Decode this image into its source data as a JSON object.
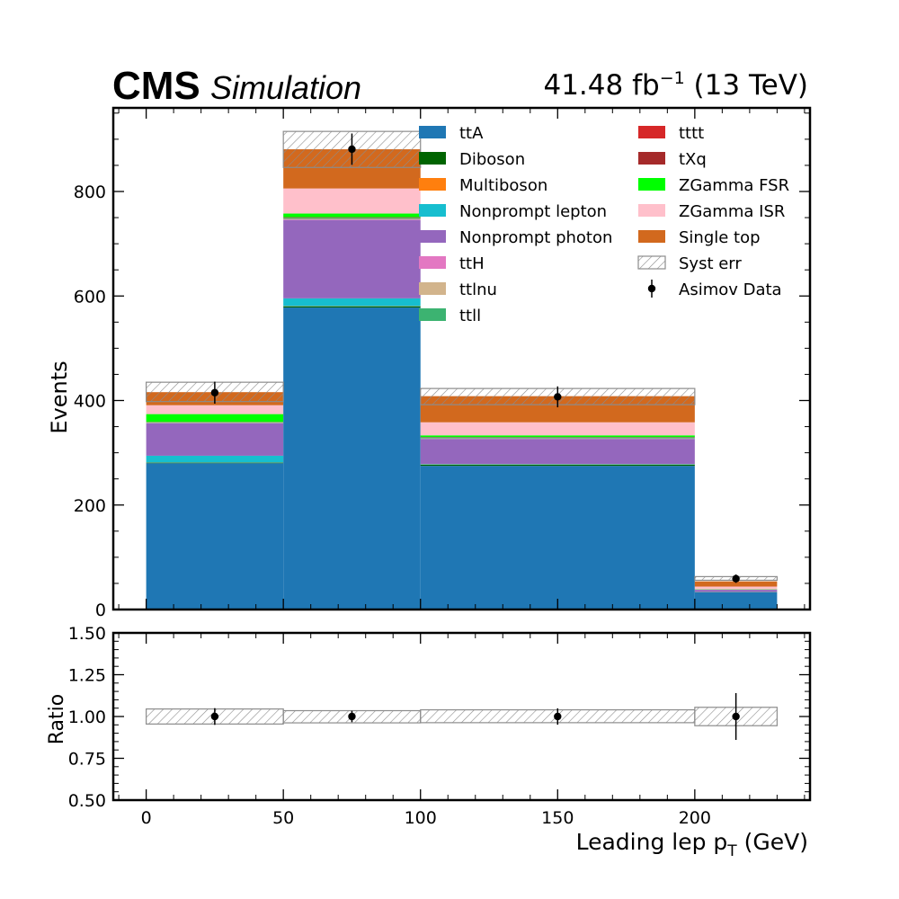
{
  "header": {
    "experiment": "CMS",
    "label": "Simulation",
    "lumi_value": "41.48 fb",
    "lumi_exp": "−1",
    "energy": " (13 TeV)"
  },
  "chart_data": [
    {
      "type": "bar",
      "stacked": true,
      "bins": [
        [
          0,
          50
        ],
        [
          50,
          100
        ],
        [
          100,
          200
        ],
        [
          200,
          230
        ]
      ],
      "ylabel": "Events",
      "ylim": [
        0,
        960
      ],
      "yticks": [
        "0",
        "200",
        "400",
        "600",
        "800"
      ],
      "legend_position": "top-right",
      "series": [
        {
          "name": "ttA",
          "color": "#1f77b4",
          "values": [
            280,
            578,
            275,
            33
          ]
        },
        {
          "name": "Diboson",
          "color": "#006400",
          "values": [
            1,
            2,
            2,
            0.3
          ]
        },
        {
          "name": "Multiboson",
          "color": "#ff7f0e",
          "values": [
            0.3,
            0.5,
            0.5,
            0.1
          ]
        },
        {
          "name": "Nonprompt lepton",
          "color": "#17becf",
          "values": [
            13,
            15,
            1,
            0.3
          ]
        },
        {
          "name": "Nonprompt photon",
          "color": "#9467bd",
          "values": [
            62,
            150,
            48,
            4
          ]
        },
        {
          "name": "ttH",
          "color": "#e377c2",
          "values": [
            0.5,
            1,
            0.5,
            0.1
          ]
        },
        {
          "name": "ttlnu",
          "color": "#d2b48c",
          "values": [
            0.5,
            1,
            0.5,
            0.1
          ]
        },
        {
          "name": "ttll",
          "color": "#3cb371",
          "values": [
            1,
            2,
            2,
            0.3
          ]
        },
        {
          "name": "tttt",
          "color": "#d62728",
          "values": [
            0.2,
            0.3,
            0.3,
            0.1
          ]
        },
        {
          "name": "tXq",
          "color": "#a52a2a",
          "values": [
            0.5,
            1,
            0.5,
            0.1
          ]
        },
        {
          "name": "ZGamma FSR",
          "color": "#00ff00",
          "values": [
            15,
            7,
            3,
            0.5
          ]
        },
        {
          "name": "ZGamma ISR",
          "color": "#ffc0cb",
          "values": [
            17,
            48,
            25,
            5
          ]
        },
        {
          "name": "Single top",
          "color": "#d2691e",
          "values": [
            25,
            75,
            50,
            10
          ]
        }
      ],
      "syst_err": {
        "name": "Syst err",
        "up": [
          435,
          915,
          423,
          63
        ],
        "down": [
          398,
          846,
          392,
          56
        ]
      },
      "data": {
        "name": "Asimov Data",
        "x": [
          25,
          75,
          150,
          215
        ],
        "y": [
          415,
          881,
          407,
          59
        ],
        "yerr": [
          21,
          30,
          20,
          8
        ]
      }
    },
    {
      "type": "scatter",
      "ylabel": "Ratio",
      "xlabel": "Leading lep p",
      "xlabel_sub": "T",
      "xlabel_unit": " (GeV)",
      "xlim": [
        -12,
        242
      ],
      "ylim": [
        0.5,
        1.5
      ],
      "xticks": [
        "0",
        "50",
        "100",
        "150",
        "200"
      ],
      "yticks": [
        "0.50",
        "0.75",
        "1.00",
        "1.25",
        "1.50"
      ],
      "ratio_band": {
        "up": [
          1.045,
          1.035,
          1.04,
          1.055
        ],
        "down": [
          0.955,
          0.962,
          0.963,
          0.945
        ]
      },
      "ratio_points": {
        "x": [
          25,
          75,
          150,
          215
        ],
        "y": [
          1.0,
          1.0,
          1.0,
          1.0
        ],
        "yerr": [
          0.05,
          0.034,
          0.049,
          0.14
        ]
      }
    }
  ]
}
